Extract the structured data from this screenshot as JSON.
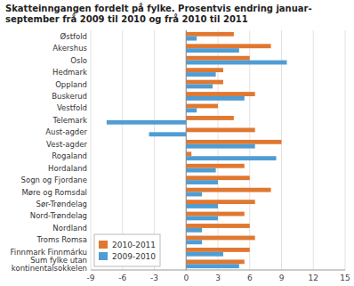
{
  "chart_data": {
    "type": "bar",
    "orientation": "horizontal",
    "title": "Skatteinngangen fordelt på fylke. Prosentvis endring januar-\nseptember frå 2009 til 2010 og frå 2010 til 2011",
    "categories": [
      "Østfold",
      "Akershus",
      "Oslo",
      "Hedmark",
      "Oppland",
      "Buskerud",
      "Vestfold",
      "Telemark",
      "Aust-agder",
      "Vest-agder",
      "Rogaland",
      "Hordaland",
      "Sogn og Fjordane",
      "Møre og Romsdal",
      "Sør-Trøndelag",
      "Nord-Trøndelag",
      "Nordland",
      "Troms Romsa",
      "Finnmark Finnmárku",
      "Sum fylke utan\nkontinentalsokkelen"
    ],
    "series": [
      {
        "name": "2010-2011",
        "color": "#e07830",
        "values": [
          4.5,
          8.0,
          6.0,
          3.5,
          3.5,
          6.5,
          3.0,
          4.5,
          6.5,
          9.0,
          0.5,
          5.5,
          6.0,
          8.0,
          6.5,
          5.5,
          6.0,
          6.5,
          6.0,
          5.5
        ]
      },
      {
        "name": "2009-2010",
        "color": "#4f9dd4",
        "values": [
          1.0,
          5.0,
          9.5,
          2.8,
          2.5,
          5.5,
          1.0,
          -7.5,
          -3.5,
          6.5,
          8.5,
          2.8,
          3.0,
          1.5,
          3.0,
          3.0,
          1.5,
          1.5,
          3.5,
          5.0
        ]
      }
    ],
    "xlim": [
      -9,
      15
    ],
    "xticks": [
      -9,
      -6,
      -3,
      0,
      3,
      6,
      9,
      12,
      15
    ],
    "grid": true,
    "legend": "lower left"
  }
}
